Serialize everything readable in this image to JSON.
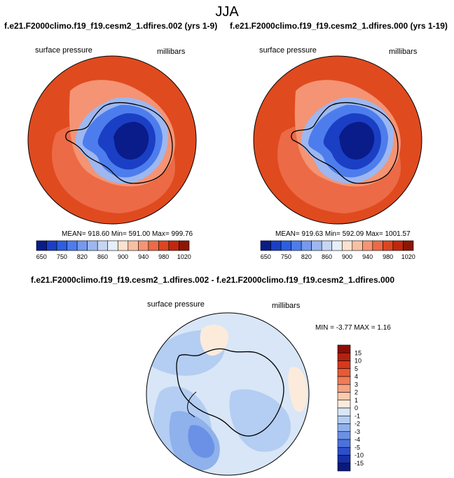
{
  "title": "JJA",
  "panels": [
    {
      "case_title": "f.e21.F2000climo.f19_f19.cesm2_1.dfires.002 (yrs 1-9)",
      "left_label": "surface pressure",
      "right_label": "millibars",
      "stats": "MEAN= 918.60  Min= 591.00  Max= 999.76"
    },
    {
      "case_title": "f.e21.F2000climo.f19_f19.cesm2_1.dfires.000 (yrs 1-19)",
      "left_label": "surface pressure",
      "right_label": "millibars",
      "stats": "MEAN= 919.63  Min= 592.09  Max= 1001.57"
    }
  ],
  "diff_panel": {
    "title": "f.e21.F2000climo.f19_f19.cesm2_1.dfires.002 - f.e21.F2000climo.f19_f19.cesm2_1.dfires.000",
    "left_label": "surface pressure",
    "right_label": "millibars",
    "stats": "MIN =  -3.77 MAX =   1.16"
  },
  "chart_data": [
    {
      "type": "heatmap",
      "projection": "south polar stereographic",
      "variable": "surface pressure",
      "units": "millibars",
      "mean": 918.6,
      "min": 591.0,
      "max": 999.76,
      "colorbar": {
        "orientation": "horizontal",
        "colors": [
          "#0a1c8a",
          "#1a3fc4",
          "#2d5ee0",
          "#4d7ded",
          "#7699ee",
          "#9db7f0",
          "#c4d6f3",
          "#e5eefa",
          "#fbe1cf",
          "#f8c0a2",
          "#f49474",
          "#ec6a46",
          "#dd4521",
          "#c0280e",
          "#8c1606"
        ],
        "tick_labels": [
          "650",
          "750",
          "820",
          "860",
          "900",
          "940",
          "980",
          "1020"
        ]
      }
    },
    {
      "type": "heatmap",
      "projection": "south polar stereographic",
      "variable": "surface pressure",
      "units": "millibars",
      "mean": 919.63,
      "min": 592.09,
      "max": 1001.57,
      "colorbar": {
        "orientation": "horizontal",
        "colors": [
          "#0a1c8a",
          "#1a3fc4",
          "#2d5ee0",
          "#4d7ded",
          "#7699ee",
          "#9db7f0",
          "#c4d6f3",
          "#e5eefa",
          "#fbe1cf",
          "#f8c0a2",
          "#f49474",
          "#ec6a46",
          "#dd4521",
          "#c0280e",
          "#8c1606"
        ],
        "tick_labels": [
          "650",
          "750",
          "820",
          "860",
          "900",
          "940",
          "980",
          "1020"
        ]
      }
    },
    {
      "type": "heatmap",
      "projection": "south polar stereographic",
      "variable": "surface pressure difference",
      "units": "millibars",
      "min": -3.77,
      "max": 1.16,
      "colorbar": {
        "orientation": "vertical",
        "colors": [
          "#8c0d0a",
          "#b3220f",
          "#d6391c",
          "#e85a35",
          "#f07c58",
          "#f6a283",
          "#fbcaaf",
          "#fcebdb",
          "#d8e6f7",
          "#b4cdf2",
          "#8fb1ec",
          "#6b91e6",
          "#4b72de",
          "#2d4fcc",
          "#172fa8",
          "#0a1a7a"
        ],
        "tick_labels": [
          "15",
          "10",
          "5",
          "4",
          "3",
          "2",
          "1",
          "0",
          "-1",
          "-2",
          "-3",
          "-4",
          "-5",
          "-10",
          "-15"
        ]
      }
    }
  ]
}
